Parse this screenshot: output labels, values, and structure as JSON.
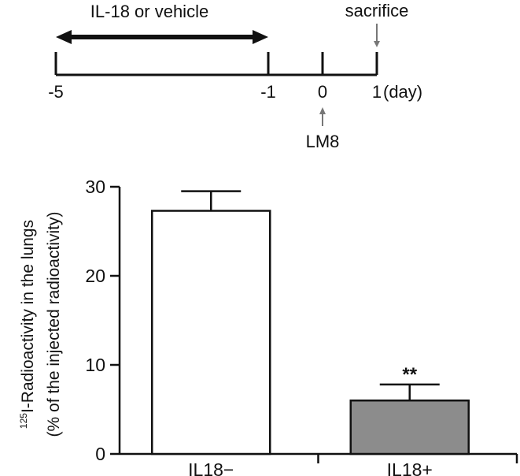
{
  "timeline": {
    "treatment_label": "IL-18 or vehicle",
    "sacrifice_label": "sacrifice",
    "injection_label": "LM8",
    "unit_label": "(day)",
    "ticks": [
      {
        "value": -5,
        "label": "-5"
      },
      {
        "value": -1,
        "label": "-1"
      },
      {
        "value": 0,
        "label": "0"
      },
      {
        "value": 1,
        "label": "1"
      }
    ],
    "treatment_range": [
      -5,
      -1
    ],
    "sacrifice_day": 1,
    "injection_day": 0,
    "arrow_color": "#777777"
  },
  "chart_data": {
    "type": "bar",
    "categories": [
      "IL18−",
      "IL18+"
    ],
    "values": [
      27.3,
      6.0
    ],
    "errors": [
      2.2,
      1.8
    ],
    "bar_colors": [
      "#ffffff",
      "#8c8c8c"
    ],
    "annotations": [
      {
        "category_index": 1,
        "text": "**"
      }
    ],
    "ylabel_superscript": "125",
    "ylabel_line1": "I-Radioactivity in the lungs",
    "ylabel_line2": "(% of the injected radioactivity)",
    "ylim": [
      0,
      30
    ],
    "yticks": [
      0,
      10,
      20,
      30
    ],
    "grid": false
  }
}
